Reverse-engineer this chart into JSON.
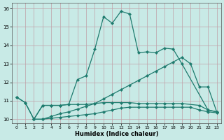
{
  "xlabel": "Humidex (Indice chaleur)",
  "xlim": [
    -0.5,
    23.5
  ],
  "ylim": [
    9.8,
    16.3
  ],
  "yticks": [
    10,
    11,
    12,
    13,
    14,
    15,
    16
  ],
  "xticks": [
    0,
    1,
    2,
    3,
    4,
    5,
    6,
    7,
    8,
    9,
    10,
    11,
    12,
    13,
    14,
    15,
    16,
    17,
    18,
    19,
    20,
    21,
    22,
    23
  ],
  "line_color": "#1e7b6e",
  "bg_color": "#c8eae6",
  "grid_color": "#c0a0a8",
  "line1_x": [
    0,
    1,
    2,
    3,
    4,
    5,
    6,
    7,
    8,
    9,
    10,
    11,
    12,
    13,
    14,
    15,
    16,
    17,
    18,
    19,
    22,
    23
  ],
  "line1_y": [
    11.2,
    10.9,
    10.0,
    10.75,
    10.75,
    10.75,
    10.8,
    12.15,
    12.35,
    13.8,
    15.55,
    15.2,
    15.85,
    15.7,
    13.6,
    13.65,
    13.6,
    13.85,
    13.8,
    13.0,
    10.5,
    10.4
  ],
  "line2_x": [
    0,
    1,
    2,
    3,
    4,
    5,
    6,
    7,
    8,
    9,
    10,
    11,
    12,
    13,
    14,
    15,
    16,
    17,
    18,
    19,
    21,
    22,
    23
  ],
  "line2_y": [
    11.2,
    10.9,
    10.0,
    10.75,
    10.75,
    10.75,
    10.8,
    10.8,
    10.8,
    10.85,
    10.9,
    10.9,
    10.9,
    10.9,
    10.85,
    10.85,
    10.85,
    10.85,
    10.85,
    10.85,
    10.75,
    10.5,
    10.4
  ],
  "line3_x": [
    2,
    3,
    4,
    5,
    6,
    7,
    8,
    9,
    10,
    11,
    12,
    13,
    14,
    15,
    16,
    17,
    18,
    19,
    20,
    21,
    22,
    23
  ],
  "line3_y": [
    10.0,
    10.0,
    10.15,
    10.3,
    10.4,
    10.55,
    10.7,
    10.85,
    11.1,
    11.35,
    11.6,
    11.85,
    12.1,
    12.35,
    12.6,
    12.85,
    13.1,
    13.35,
    13.0,
    11.75,
    11.75,
    10.4
  ],
  "line4_x": [
    2,
    3,
    4,
    5,
    6,
    7,
    8,
    9,
    10,
    11,
    12,
    13,
    14,
    15,
    16,
    17,
    18,
    19,
    20,
    21,
    22,
    23
  ],
  "line4_y": [
    10.0,
    10.0,
    10.05,
    10.1,
    10.15,
    10.2,
    10.25,
    10.3,
    10.4,
    10.5,
    10.6,
    10.65,
    10.65,
    10.65,
    10.65,
    10.65,
    10.65,
    10.65,
    10.65,
    10.5,
    10.4,
    10.35
  ]
}
